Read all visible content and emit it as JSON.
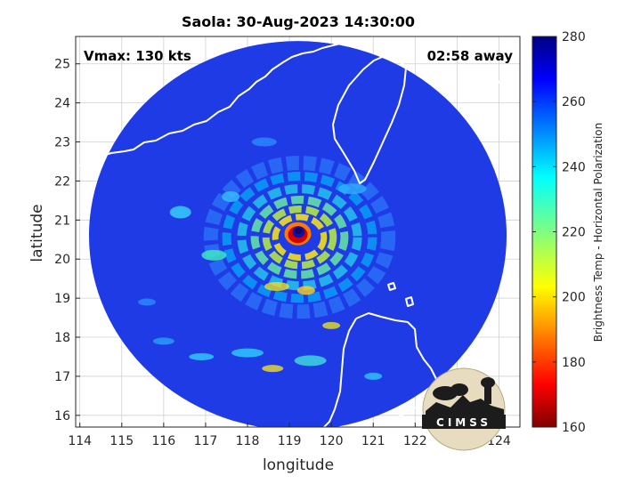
{
  "chart_data": {
    "type": "heatmap",
    "title": "Saola: 30-Aug-2023 14:30:00",
    "xlabel": "longitude",
    "ylabel": "latitude",
    "xlim": [
      113.9,
      124.5
    ],
    "ylim": [
      15.7,
      25.7
    ],
    "xticks": [
      114,
      115,
      116,
      117,
      118,
      119,
      120,
      121,
      122,
      123,
      124
    ],
    "yticks": [
      16,
      17,
      18,
      19,
      20,
      21,
      22,
      23,
      24,
      25
    ],
    "grid": true,
    "annotations": {
      "vmax": "Vmax: 130 kts",
      "away": "02:58 away"
    },
    "colorbar": {
      "label": "Brightness Temp - Horizontal Polarization",
      "min": 160,
      "max": 280,
      "ticks": [
        160,
        180,
        200,
        220,
        240,
        260,
        280
      ],
      "colormap": "jet"
    },
    "storm_center": {
      "lon": 119.2,
      "lat": 20.65
    },
    "swath": {
      "center_lon": 119.2,
      "center_lat": 20.6,
      "radius_deg": 5.3
    },
    "logo_text": "CIMSS"
  },
  "colors": {
    "background_outside": "#ffffff",
    "cold_blue": "#1a2fd6",
    "coast": "#ffffff",
    "grid": "#bfbfbf"
  }
}
